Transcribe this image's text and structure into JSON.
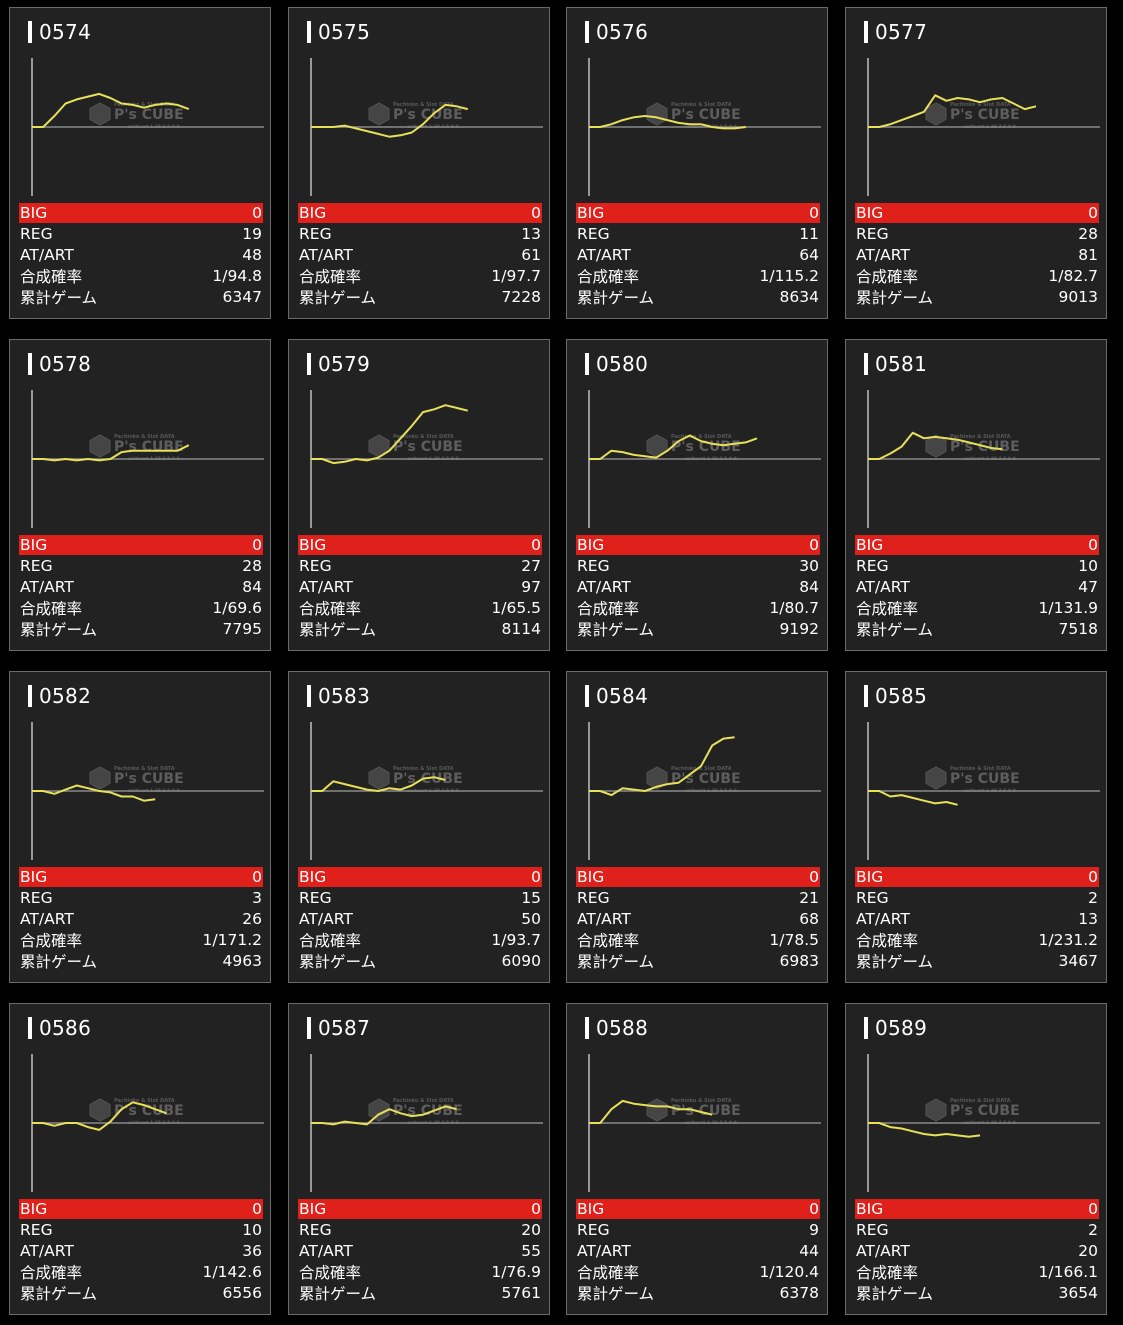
{
  "colors": {
    "accent": "#e0201b",
    "line": "#e8e05a",
    "background": "#000000",
    "card": "#222222",
    "zero_line": "#8a8a8a"
  },
  "watermark": {
    "brand": "P's CUBE",
    "small_text": "Pachinko & Slot DATA",
    "sub_text": "anitaart 1 29 3 5 0 0"
  },
  "stat_labels": {
    "big": "BIG",
    "reg": "REG",
    "at": "AT/ART",
    "prob": "合成確率",
    "games": "累計ゲーム"
  },
  "chart_data": [
    {
      "type": "line",
      "title": "0574",
      "zero": 0.5,
      "points": [
        0.5,
        0.5,
        0.58,
        0.67,
        0.7,
        0.72,
        0.74,
        0.71,
        0.67,
        0.66,
        0.64,
        0.66,
        0.67,
        0.66,
        0.63
      ],
      "stats": {
        "big": "0",
        "reg": "19",
        "at": "48",
        "prob": "1/94.8",
        "games": "6347"
      }
    },
    {
      "type": "line",
      "title": "0575",
      "zero": 0.5,
      "points": [
        0.5,
        0.5,
        0.5,
        0.51,
        0.49,
        0.47,
        0.45,
        0.43,
        0.44,
        0.46,
        0.52,
        0.6,
        0.66,
        0.65,
        0.63
      ],
      "stats": {
        "big": "0",
        "reg": "13",
        "at": "61",
        "prob": "1/97.7",
        "games": "7228"
      }
    },
    {
      "type": "line",
      "title": "0576",
      "zero": 0.5,
      "points": [
        0.5,
        0.5,
        0.52,
        0.55,
        0.57,
        0.58,
        0.57,
        0.55,
        0.53,
        0.52,
        0.52,
        0.5,
        0.49,
        0.49,
        0.5
      ],
      "stats": {
        "big": "0",
        "reg": "11",
        "at": "64",
        "prob": "1/115.2",
        "games": "8634"
      }
    },
    {
      "type": "line",
      "title": "0577",
      "zero": 0.5,
      "points": [
        0.5,
        0.5,
        0.52,
        0.55,
        0.58,
        0.61,
        0.73,
        0.69,
        0.71,
        0.7,
        0.68,
        0.7,
        0.71,
        0.67,
        0.63,
        0.65
      ],
      "stats": {
        "big": "0",
        "reg": "28",
        "at": "81",
        "prob": "1/82.7",
        "games": "9013"
      }
    },
    {
      "type": "line",
      "title": "0578",
      "zero": 0.5,
      "points": [
        0.5,
        0.5,
        0.49,
        0.5,
        0.49,
        0.5,
        0.49,
        0.5,
        0.55,
        0.56,
        0.56,
        0.56,
        0.56,
        0.56,
        0.6
      ],
      "stats": {
        "big": "0",
        "reg": "28",
        "at": "84",
        "prob": "1/69.6",
        "games": "7795"
      }
    },
    {
      "type": "line",
      "title": "0579",
      "zero": 0.5,
      "points": [
        0.5,
        0.5,
        0.47,
        0.48,
        0.5,
        0.49,
        0.51,
        0.56,
        0.65,
        0.74,
        0.84,
        0.86,
        0.89,
        0.87,
        0.85
      ],
      "stats": {
        "big": "0",
        "reg": "27",
        "at": "97",
        "prob": "1/65.5",
        "games": "8114"
      }
    },
    {
      "type": "line",
      "title": "0580",
      "zero": 0.5,
      "points": [
        0.5,
        0.5,
        0.56,
        0.55,
        0.53,
        0.52,
        0.51,
        0.56,
        0.63,
        0.67,
        0.63,
        0.61,
        0.6,
        0.61,
        0.62,
        0.65
      ],
      "stats": {
        "big": "0",
        "reg": "30",
        "at": "84",
        "prob": "1/80.7",
        "games": "9192"
      }
    },
    {
      "type": "line",
      "title": "0581",
      "zero": 0.5,
      "points": [
        0.5,
        0.5,
        0.54,
        0.59,
        0.69,
        0.65,
        0.66,
        0.65,
        0.64,
        0.62,
        0.6,
        0.58,
        0.57
      ],
      "stats": {
        "big": "0",
        "reg": "10",
        "at": "47",
        "prob": "1/131.9",
        "games": "7518"
      }
    },
    {
      "type": "line",
      "title": "0582",
      "zero": 0.5,
      "points": [
        0.5,
        0.5,
        0.48,
        0.51,
        0.54,
        0.52,
        0.5,
        0.49,
        0.46,
        0.46,
        0.43,
        0.44
      ],
      "stats": {
        "big": "0",
        "reg": "3",
        "at": "26",
        "prob": "1/171.2",
        "games": "4963"
      }
    },
    {
      "type": "line",
      "title": "0583",
      "zero": 0.5,
      "points": [
        0.5,
        0.5,
        0.57,
        0.55,
        0.53,
        0.51,
        0.5,
        0.52,
        0.51,
        0.54,
        0.59,
        0.6,
        0.58
      ],
      "stats": {
        "big": "0",
        "reg": "15",
        "at": "50",
        "prob": "1/93.7",
        "games": "6090"
      }
    },
    {
      "type": "line",
      "title": "0584",
      "zero": 0.5,
      "points": [
        0.5,
        0.5,
        0.47,
        0.52,
        0.51,
        0.5,
        0.53,
        0.55,
        0.56,
        0.62,
        0.68,
        0.83,
        0.88,
        0.89
      ],
      "stats": {
        "big": "0",
        "reg": "21",
        "at": "68",
        "prob": "1/78.5",
        "games": "6983"
      }
    },
    {
      "type": "line",
      "title": "0585",
      "zero": 0.5,
      "points": [
        0.5,
        0.5,
        0.46,
        0.47,
        0.45,
        0.43,
        0.41,
        0.42,
        0.4
      ],
      "stats": {
        "big": "0",
        "reg": "2",
        "at": "13",
        "prob": "1/231.2",
        "games": "3467"
      }
    },
    {
      "type": "line",
      "title": "0586",
      "zero": 0.5,
      "points": [
        0.5,
        0.5,
        0.48,
        0.5,
        0.5,
        0.47,
        0.45,
        0.51,
        0.6,
        0.65,
        0.63,
        0.6,
        0.57
      ],
      "stats": {
        "big": "0",
        "reg": "10",
        "at": "36",
        "prob": "1/142.6",
        "games": "6556"
      }
    },
    {
      "type": "line",
      "title": "0587",
      "zero": 0.5,
      "points": [
        0.5,
        0.5,
        0.49,
        0.51,
        0.5,
        0.49,
        0.56,
        0.6,
        0.57,
        0.55,
        0.56,
        0.59,
        0.62,
        0.6
      ],
      "stats": {
        "big": "0",
        "reg": "20",
        "at": "55",
        "prob": "1/76.9",
        "games": "5761"
      }
    },
    {
      "type": "line",
      "title": "0588",
      "zero": 0.5,
      "points": [
        0.5,
        0.5,
        0.6,
        0.66,
        0.64,
        0.63,
        0.62,
        0.62,
        0.6,
        0.6,
        0.58,
        0.56
      ],
      "stats": {
        "big": "0",
        "reg": "9",
        "at": "44",
        "prob": "1/120.4",
        "games": "6378"
      }
    },
    {
      "type": "line",
      "title": "0589",
      "zero": 0.5,
      "points": [
        0.5,
        0.5,
        0.47,
        0.46,
        0.44,
        0.42,
        0.41,
        0.42,
        0.41,
        0.4,
        0.41
      ],
      "stats": {
        "big": "0",
        "reg": "2",
        "at": "20",
        "prob": "1/166.1",
        "games": "3654"
      }
    }
  ]
}
